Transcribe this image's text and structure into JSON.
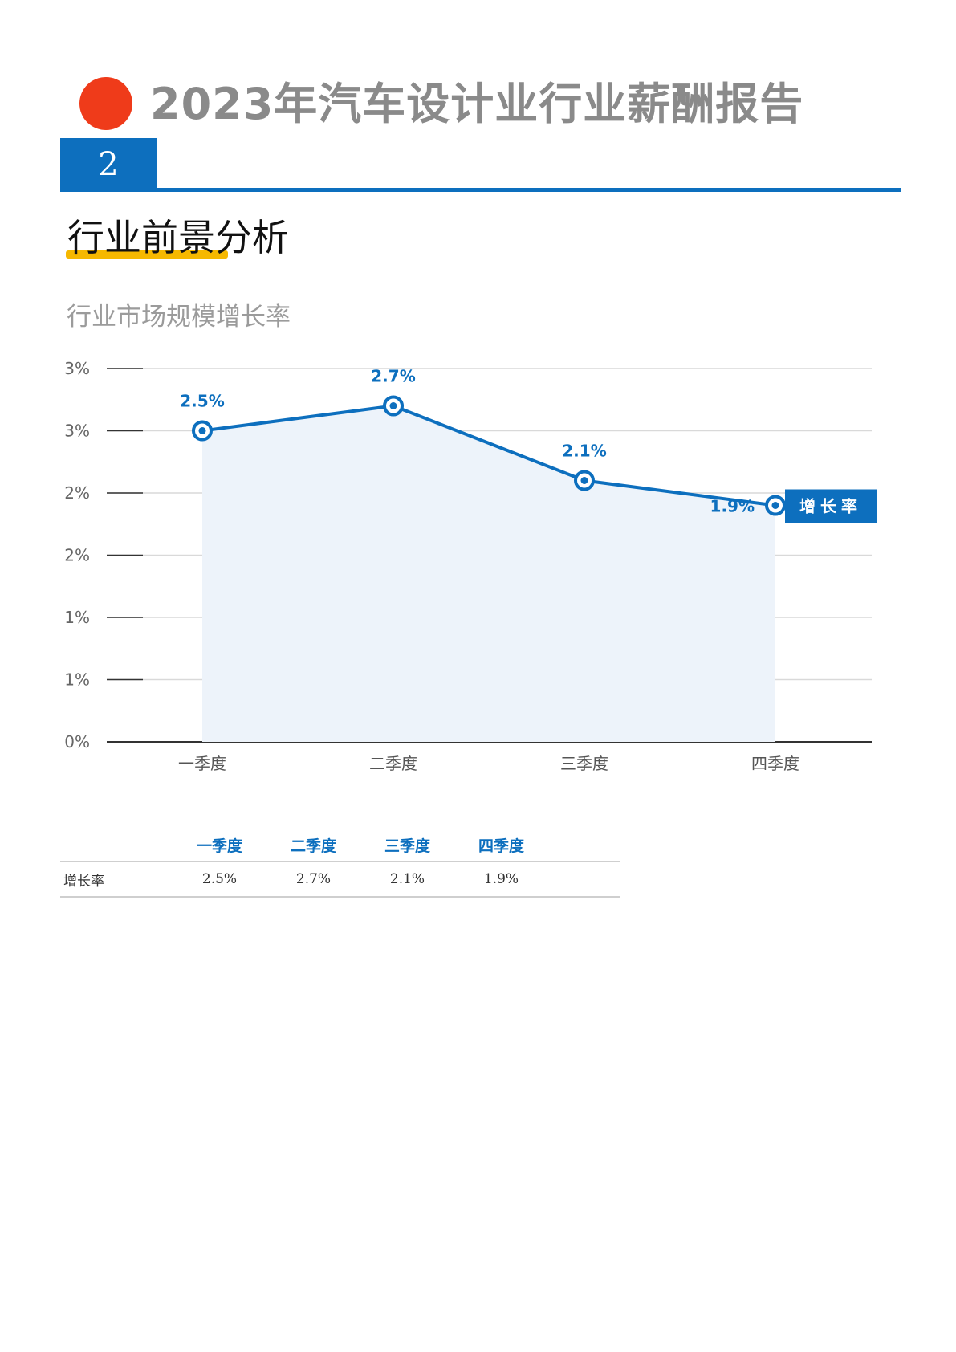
{
  "header": {
    "title": "2023年汽车设计业行业薪酬报告",
    "chapter_number": "2"
  },
  "section": {
    "title": "行业前景分析"
  },
  "chart_data": {
    "type": "area",
    "title": "行业市场规模增长率",
    "categories": [
      "一季度",
      "二季度",
      "三季度",
      "四季度"
    ],
    "series": [
      {
        "name": "增长率",
        "values": [
          2.5,
          2.7,
          2.1,
          1.9
        ],
        "data_labels": [
          "2.5%",
          "2.7%",
          "2.1%",
          "1.9%"
        ]
      }
    ],
    "y_ticks": [
      0,
      0.5,
      1.0,
      1.5,
      2.0,
      2.5,
      3.0
    ],
    "y_tick_labels": [
      "0%",
      "1%",
      "1%",
      "2%",
      "2%",
      "3%",
      "3%"
    ],
    "ylim": [
      0,
      3
    ],
    "grid": true,
    "legend_placement": "right, at end of line",
    "colors": {
      "line": "#0d6fbe",
      "area": "#edf3fa",
      "label_bg": "#0d6fbe",
      "label_text": "#ffffff"
    }
  },
  "table": {
    "columns": [
      "",
      "一季度",
      "二季度",
      "三季度",
      "四季度",
      ""
    ],
    "rows": [
      {
        "label": "增长率",
        "values": [
          "2.5%",
          "2.7%",
          "2.1%",
          "1.9%"
        ]
      }
    ]
  },
  "colors": {
    "accent_blue": "#0d6fbe",
    "red_dot": "#ef3b1a",
    "underline_yellow": "#f6b800",
    "title_gray": "#8a8a8a"
  }
}
